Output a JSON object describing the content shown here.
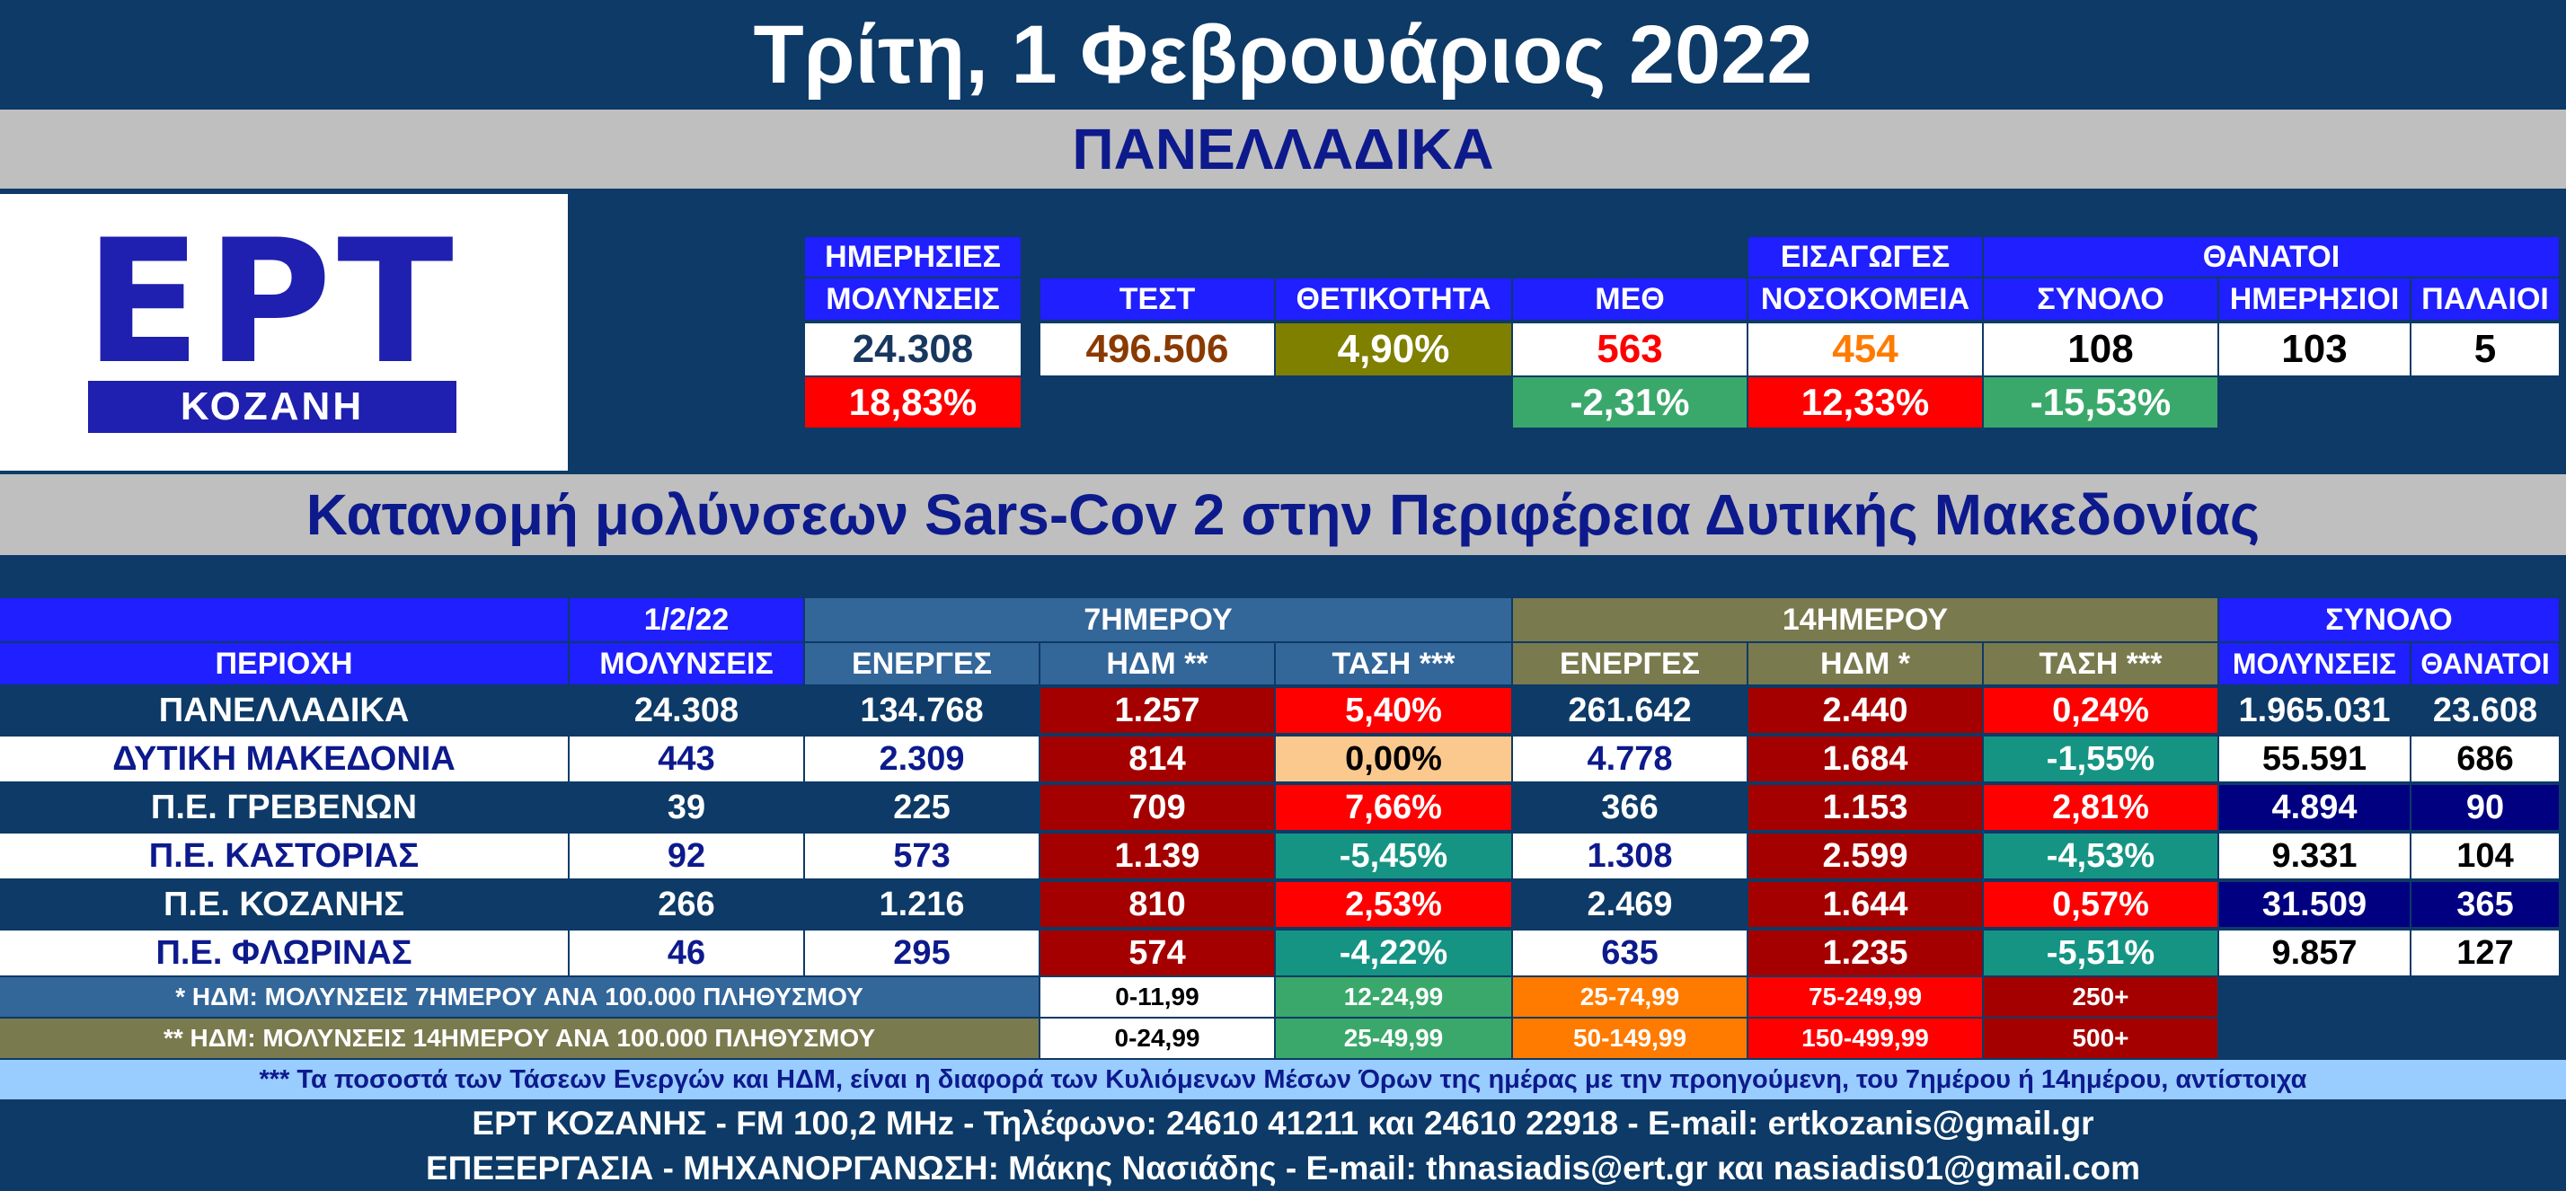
{
  "header": {
    "date_title": "Τρίτη, 1 Φεβρουάριος 2022",
    "section_national": "ΠΑΝΕΛΛΑΔΙΚΑ",
    "logo_main": "ΕΡΤ",
    "logo_sub": "ΚΟΖΑΝΗ"
  },
  "national": {
    "headers": {
      "daily_cases_1": "ΗΜΕΡΗΣΙΕΣ",
      "daily_cases_2": "ΜΟΛΥΝΣΕΙΣ",
      "tests": "ΤΕΣΤ",
      "positivity": "ΘΕΤΙΚΟΤΗΤΑ",
      "icu": "ΜΕΘ",
      "admissions_1": "ΕΙΣΑΓΩΓΕΣ",
      "admissions_2": "ΝΟΣΟΚΟΜΕΙΑ",
      "deaths_group": "ΘΑΝΑΤΟΙ",
      "deaths_total": "ΣΥΝΟΛΟ",
      "deaths_daily": "ΗΜΕΡΗΣΙΟΙ",
      "deaths_old": "ΠΑΛΑΙΟΙ"
    },
    "values": {
      "daily_cases": "24.308",
      "tests": "496.506",
      "positivity": "4,90%",
      "icu": "563",
      "admissions": "454",
      "deaths_total": "108",
      "deaths_daily": "103",
      "deaths_old": "5"
    },
    "changes": {
      "daily_cases": "18,83%",
      "icu": "-2,31%",
      "admissions": "12,33%",
      "deaths_total": "-15,53%"
    }
  },
  "regional_title": "Κατανομή μολύνσεων Sars-Cov 2 στην Περιφέρεια Δυτικής Μακεδονίας",
  "table": {
    "headers": {
      "area": "ΠΕΡΙΟΧΗ",
      "date": "1/2/22",
      "cases": "ΜΟΛΥΝΣΕΙΣ",
      "group7": "7ΗΜΕΡΟΥ",
      "group14": "14ΗΜΕΡΟΥ",
      "group_total": "ΣΥΝΟΛΟ",
      "active": "ΕΝΕΡΓΕΣ",
      "hdm7": "ΗΔΜ **",
      "trend7": "ΤΑΣΗ ***",
      "active14": "ΕΝΕΡΓΕΣ",
      "hdm14": "ΗΔΜ *",
      "trend14": "ΤΑΣΗ ***",
      "total_cases": "ΜΟΛΥΝΣΕΙΣ",
      "total_deaths": "ΘΑΝΑΤΟΙ"
    },
    "rows": [
      {
        "name": "ΠΑΝΕΛΛΑΔΙΚΑ",
        "cases": "24.308",
        "active7": "134.768",
        "hdm7": "1.257",
        "trend7": "5,40%",
        "active14": "261.642",
        "hdm14": "2.440",
        "trend14": "0,24%",
        "total_cases": "1.965.031",
        "total_deaths": "23.608"
      },
      {
        "name": "ΔΥΤΙΚΗ ΜΑΚΕΔΟΝΙΑ",
        "cases": "443",
        "active7": "2.309",
        "hdm7": "814",
        "trend7": "0,00%",
        "active14": "4.778",
        "hdm14": "1.684",
        "trend14": "-1,55%",
        "total_cases": "55.591",
        "total_deaths": "686"
      },
      {
        "name": "Π.Ε. ΓΡΕΒΕΝΩΝ",
        "cases": "39",
        "active7": "225",
        "hdm7": "709",
        "trend7": "7,66%",
        "active14": "366",
        "hdm14": "1.153",
        "trend14": "2,81%",
        "total_cases": "4.894",
        "total_deaths": "90"
      },
      {
        "name": "Π.Ε. ΚΑΣΤΟΡΙΑΣ",
        "cases": "92",
        "active7": "573",
        "hdm7": "1.139",
        "trend7": "-5,45%",
        "active14": "1.308",
        "hdm14": "2.599",
        "trend14": "-4,53%",
        "total_cases": "9.331",
        "total_deaths": "104"
      },
      {
        "name": "Π.Ε. ΚΟΖΑΝΗΣ",
        "cases": "266",
        "active7": "1.216",
        "hdm7": "810",
        "trend7": "2,53%",
        "active14": "2.469",
        "hdm14": "1.644",
        "trend14": "0,57%",
        "total_cases": "31.509",
        "total_deaths": "365"
      },
      {
        "name": "Π.Ε. ΦΛΩΡΙΝΑΣ",
        "cases": "46",
        "active7": "295",
        "hdm7": "574",
        "trend7": "-4,22%",
        "active14": "635",
        "hdm14": "1.235",
        "trend14": "-5,51%",
        "total_cases": "9.857",
        "total_deaths": "127"
      }
    ]
  },
  "legend": {
    "row7": {
      "label": "* ΗΔΜ: ΜΟΛΥΝΣΕΙΣ 7ΗΜΕΡΟΥ ΑΝΑ 100.000 ΠΛΗΘΥΣΜΟΥ",
      "r1": "0-11,99",
      "r2": "12-24,99",
      "r3": "25-74,99",
      "r4": "75-249,99",
      "r5": "250+"
    },
    "row14": {
      "label": "** ΗΔΜ: ΜΟΛΥΝΣΕΙΣ 14ΗΜΕΡΟΥ ΑΝΑ 100.000 ΠΛΗΘΥΣΜΟΥ",
      "r1": "0-24,99",
      "r2": "25-49,99",
      "r3": "50-149,99",
      "r4": "150-499,99",
      "r5": "500+"
    }
  },
  "footer": {
    "note": "*** Τα ποσοστά των Τάσεων Ενεργών και ΗΔΜ, είναι η διαφορά των Κυλιόμενων Μέσων Όρων της ημέρας με την προηγούμενη, του 7ημέρου ή 14ημέρου, αντίστοιχα",
    "line1": "ΕΡΤ ΚΟΖΑΝΗΣ - FM 100,2 MHz - Τηλέφωνο:  24610 41211 και 24610 22918 - E-mail: ertkozanis@gmail.gr",
    "line2": "ΕΠΕΞΕΡΓΑΣΙΑ  -  ΜΗΧΑΝΟΡΓΑΝΩΣΗ: Μάκης Νασιάδης  -   E-mail: thnasiadis@ert.gr και nasiadis01@gmail.com"
  },
  "colors": {
    "navy_bg": "#0d3a66",
    "header_blue": "#1f1fff",
    "steel_blue": "#336699",
    "olive_header": "#7a7a4f",
    "dark_red": "#a50000",
    "red": "#ff0000",
    "teal": "#169483",
    "peach": "#fbc98e",
    "orange": "#ff7b00",
    "green": "#3aa86b",
    "olive": "#7f7f00",
    "gray_band": "#bfbfbf",
    "light_blue_band": "#99ccff"
  }
}
